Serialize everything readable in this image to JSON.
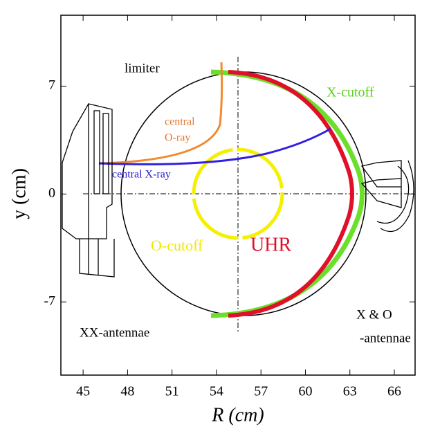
{
  "chart_data": {
    "type": "diagram",
    "x_label": "R  (cm)",
    "y_label": "y  (cm)",
    "xlim": [
      43.5,
      67.4
    ],
    "ylim": [
      -11.75,
      11.6
    ],
    "xticks": [
      45,
      48,
      51,
      54,
      57,
      60,
      63,
      66
    ],
    "yticks": [
      -7,
      0,
      7
    ],
    "annotations": [
      "limiter",
      "central",
      "O-ray",
      "central X-ray",
      "X-cutoff",
      "O-cutoff",
      "UHR",
      "XX-antennae",
      "X & O",
      "-antennae"
    ]
  }
}
